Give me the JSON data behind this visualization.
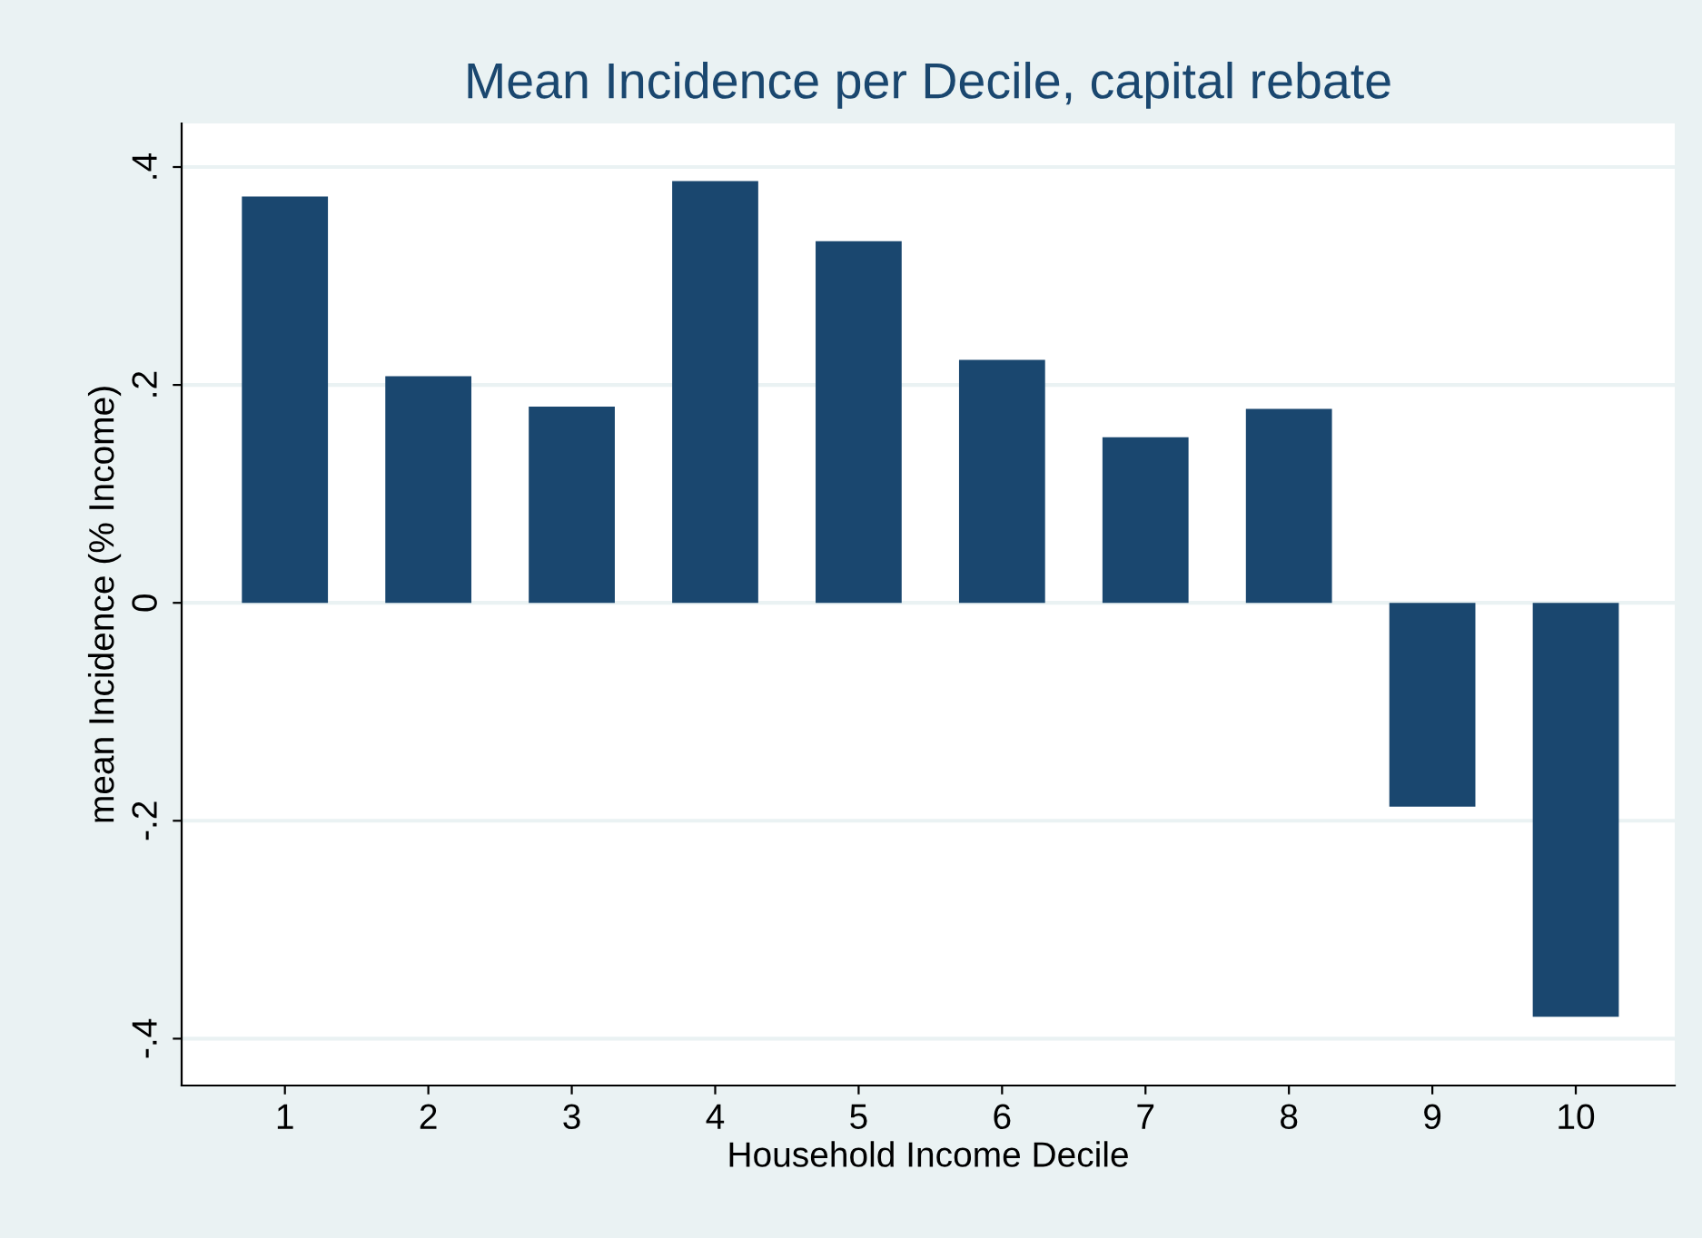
{
  "chart_data": {
    "type": "bar",
    "title": "Mean Incidence per Decile, capital rebate",
    "xlabel": "Household Income Decile",
    "ylabel": "mean Incidence (% Income)",
    "categories": [
      "1",
      "2",
      "3",
      "4",
      "5",
      "6",
      "7",
      "8",
      "9",
      "10"
    ],
    "values": [
      0.373,
      0.208,
      0.18,
      0.387,
      0.332,
      0.223,
      0.152,
      0.178,
      -0.187,
      -0.38
    ],
    "color": "#1a476f",
    "ylim": [
      -0.443,
      0.44
    ],
    "yticks": [
      {
        "value": -0.4,
        "label": "-.4"
      },
      {
        "value": -0.2,
        "label": "-.2"
      },
      0,
      {
        "value": 0.2,
        "label": ".2"
      },
      {
        "value": 0.4,
        "label": ".4"
      }
    ],
    "grid": "y",
    "legend": false
  }
}
